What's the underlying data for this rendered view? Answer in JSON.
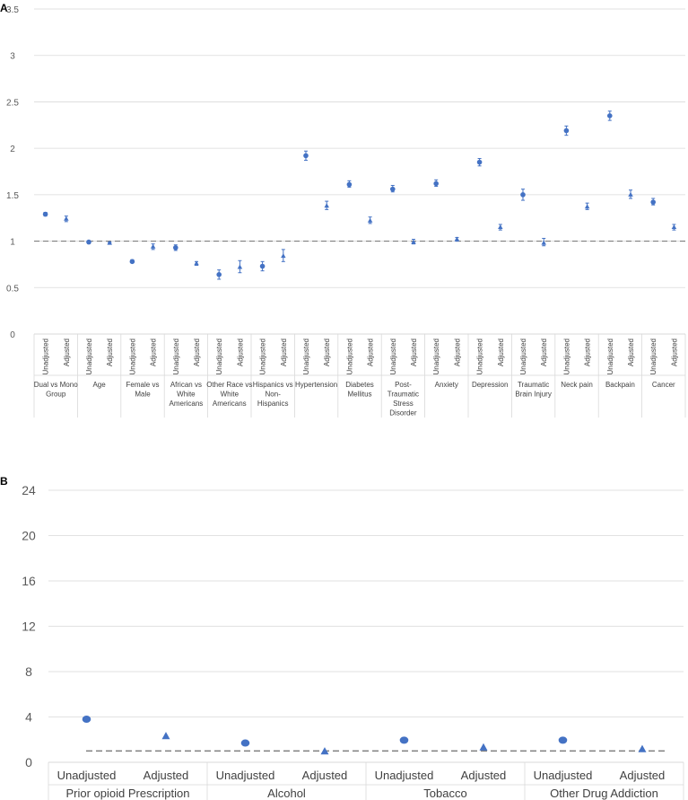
{
  "colors": {
    "marker": "#4472C4",
    "grid": "#d9d9d9",
    "reference": "#7f7f7f",
    "axis_text": "#595959"
  },
  "chart_data": [
    {
      "panel": "A",
      "type": "scatter",
      "y_ticks": [
        "0",
        "0.5",
        "1",
        "1.5",
        "2",
        "2.5",
        "3",
        "3.5"
      ],
      "ylim": [
        0,
        3.5
      ],
      "reference_line": 1,
      "sub_labels": [
        "Unadjusted",
        "Adjusted"
      ],
      "groups": [
        {
          "name": "Dual vs Mono Group",
          "lines": [
            "Dual vs Mono",
            "Group"
          ],
          "unadjusted": {
            "value": 1.29,
            "ci": [
              1.27,
              1.31
            ]
          },
          "adjusted": {
            "value": 1.24,
            "ci": [
              1.21,
              1.27
            ]
          }
        },
        {
          "name": "Age",
          "lines": [
            "Age"
          ],
          "unadjusted": {
            "value": 0.99,
            "ci": [
              0.99,
              1.0
            ]
          },
          "adjusted": {
            "value": 0.98,
            "ci": [
              0.98,
              0.99
            ]
          }
        },
        {
          "name": "Female vs Male",
          "lines": [
            "Female vs",
            "Male"
          ],
          "unadjusted": {
            "value": 0.78,
            "ci": [
              0.77,
              0.8
            ]
          },
          "adjusted": {
            "value": 0.94,
            "ci": [
              0.91,
              0.97
            ]
          }
        },
        {
          "name": "African vs White Americans",
          "lines": [
            "African vs",
            "White",
            "Americans"
          ],
          "unadjusted": {
            "value": 0.93,
            "ci": [
              0.9,
              0.96
            ]
          },
          "adjusted": {
            "value": 0.76,
            "ci": [
              0.74,
              0.78
            ]
          }
        },
        {
          "name": "Other Race vs White Americans",
          "lines": [
            "Other Race vs",
            "White",
            "Americans"
          ],
          "unadjusted": {
            "value": 0.64,
            "ci": [
              0.59,
              0.69
            ]
          },
          "adjusted": {
            "value": 0.72,
            "ci": [
              0.66,
              0.79
            ]
          }
        },
        {
          "name": "Hispanics vs Non-Hispanics",
          "lines": [
            "Hispanics vs",
            "Non-",
            "Hispanics"
          ],
          "unadjusted": {
            "value": 0.73,
            "ci": [
              0.68,
              0.78
            ]
          },
          "adjusted": {
            "value": 0.84,
            "ci": [
              0.78,
              0.91
            ]
          }
        },
        {
          "name": "Hypertension",
          "lines": [
            "Hypertension"
          ],
          "unadjusted": {
            "value": 1.92,
            "ci": [
              1.87,
              1.97
            ]
          },
          "adjusted": {
            "value": 1.38,
            "ci": [
              1.34,
              1.43
            ]
          }
        },
        {
          "name": "Diabetes Mellitus",
          "lines": [
            "Diabetes",
            "Mellitus"
          ],
          "unadjusted": {
            "value": 1.61,
            "ci": [
              1.58,
              1.65
            ]
          },
          "adjusted": {
            "value": 1.22,
            "ci": [
              1.19,
              1.26
            ]
          }
        },
        {
          "name": "Post-Traumatic Stress Disorder",
          "lines": [
            "Post-",
            "Traumatic",
            "Stress",
            "Disorder"
          ],
          "unadjusted": {
            "value": 1.56,
            "ci": [
              1.53,
              1.6
            ]
          },
          "adjusted": {
            "value": 0.99,
            "ci": [
              0.97,
              1.02
            ]
          }
        },
        {
          "name": "Anxiety",
          "lines": [
            "Anxiety"
          ],
          "unadjusted": {
            "value": 1.62,
            "ci": [
              1.59,
              1.66
            ]
          },
          "adjusted": {
            "value": 1.02,
            "ci": [
              1.0,
              1.04
            ]
          }
        },
        {
          "name": "Depression",
          "lines": [
            "Depression"
          ],
          "unadjusted": {
            "value": 1.85,
            "ci": [
              1.81,
              1.89
            ]
          },
          "adjusted": {
            "value": 1.15,
            "ci": [
              1.12,
              1.18
            ]
          }
        },
        {
          "name": "Traumatic Brain Injury",
          "lines": [
            "Traumatic",
            "Brain Injury"
          ],
          "unadjusted": {
            "value": 1.5,
            "ci": [
              1.44,
              1.56
            ]
          },
          "adjusted": {
            "value": 0.98,
            "ci": [
              0.95,
              1.03
            ]
          }
        },
        {
          "name": "Neck pain",
          "lines": [
            "Neck pain"
          ],
          "unadjusted": {
            "value": 2.19,
            "ci": [
              2.14,
              2.24
            ]
          },
          "adjusted": {
            "value": 1.37,
            "ci": [
              1.34,
              1.41
            ]
          }
        },
        {
          "name": "Backpain",
          "lines": [
            "Backpain"
          ],
          "unadjusted": {
            "value": 2.35,
            "ci": [
              2.3,
              2.4
            ]
          },
          "adjusted": {
            "value": 1.5,
            "ci": [
              1.46,
              1.55
            ]
          }
        },
        {
          "name": "Cancer",
          "lines": [
            "Cancer"
          ],
          "unadjusted": {
            "value": 1.42,
            "ci": [
              1.39,
              1.46
            ]
          },
          "adjusted": {
            "value": 1.15,
            "ci": [
              1.12,
              1.18
            ]
          }
        }
      ]
    },
    {
      "panel": "B",
      "type": "scatter",
      "y_ticks": [
        "0",
        "4",
        "8",
        "12",
        "16",
        "20",
        "24"
      ],
      "ylim": [
        0,
        24
      ],
      "reference_line": 1,
      "sub_labels": [
        "Unadjusted",
        "Adjusted"
      ],
      "groups": [
        {
          "name": "Prior opioid Prescription",
          "unadjusted": {
            "value": 3.8
          },
          "adjusted": {
            "value": 2.3
          }
        },
        {
          "name": "Alcohol",
          "unadjusted": {
            "value": 1.7
          },
          "adjusted": {
            "value": 0.95
          }
        },
        {
          "name": "Tobacco",
          "unadjusted": {
            "value": 1.95
          },
          "adjusted": {
            "value": 1.3
          }
        },
        {
          "name": "Other Drug Addiction",
          "unadjusted": {
            "value": 1.95
          },
          "adjusted": {
            "value": 1.15
          }
        }
      ]
    }
  ]
}
